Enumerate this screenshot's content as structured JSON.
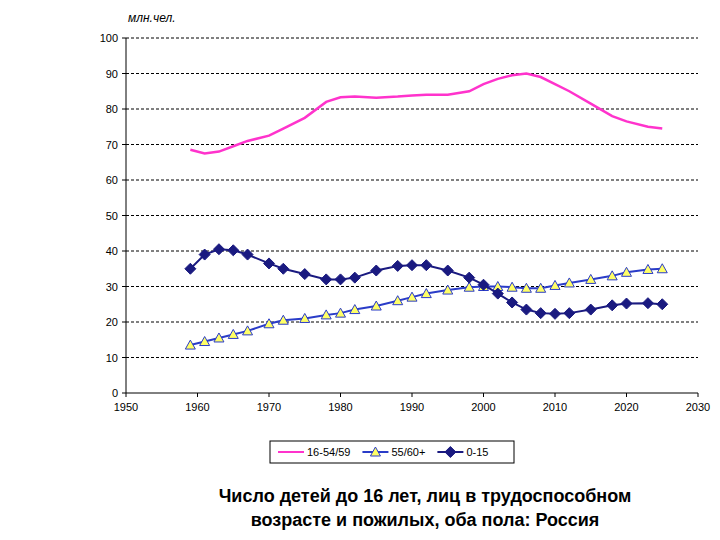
{
  "chart_data": {
    "type": "line",
    "title": "Число детей до 16 лет, лиц в трудоспособном возрасте и пожилых, оба пола: Россия",
    "y_label": "млн.чел.",
    "x": [
      1959,
      1961,
      1963,
      1965,
      1967,
      1970,
      1972,
      1975,
      1978,
      1980,
      1982,
      1985,
      1988,
      1990,
      1992,
      1995,
      1998,
      2000,
      2002,
      2004,
      2006,
      2008,
      2010,
      2012,
      2015,
      2018,
      2020,
      2023,
      2025
    ],
    "series": [
      {
        "name": "16-54/59",
        "color": "#ff33cc",
        "marker": "none",
        "line_style": "solid",
        "values": [
          68.5,
          67.5,
          68,
          69.5,
          71,
          72.5,
          74.5,
          77.5,
          82,
          83.3,
          83.5,
          83.2,
          83.5,
          83.8,
          84,
          84,
          85,
          87,
          88.5,
          89.5,
          90,
          89,
          87,
          85,
          81.5,
          78,
          76.5,
          75,
          74.5
        ]
      },
      {
        "name": "55/60+",
        "color": "#2a3cc8",
        "marker": "triangle",
        "line_style": "solid",
        "values": [
          13.5,
          14.5,
          15.5,
          16.5,
          17.5,
          19.5,
          20.5,
          21,
          22,
          22.5,
          23.5,
          24.5,
          26,
          27,
          28,
          29,
          29.8,
          30,
          30,
          29.8,
          29.5,
          29.5,
          30.3,
          31,
          32,
          33,
          34,
          34.8,
          35
        ]
      },
      {
        "name": "0-15",
        "color": "#1a1a80",
        "marker": "diamond",
        "line_style": "solid",
        "values": [
          35,
          39,
          40.5,
          40.2,
          39,
          36.5,
          35,
          33.5,
          32,
          32,
          32.5,
          34.5,
          35.8,
          36,
          36,
          34.5,
          32.5,
          30.5,
          28,
          25.5,
          23.5,
          22.5,
          22.3,
          22.5,
          23.5,
          24.7,
          25.2,
          25.3,
          25
        ]
      }
    ],
    "xlim": [
      1950,
      2030
    ],
    "xticks": [
      1950,
      1960,
      1970,
      1980,
      1990,
      2000,
      2010,
      2020,
      2030
    ],
    "ylim": [
      0,
      100
    ],
    "yticks": [
      0,
      10,
      20,
      30,
      40,
      50,
      60,
      70,
      80,
      90,
      100
    ],
    "grid": true,
    "legend": "bottom"
  }
}
